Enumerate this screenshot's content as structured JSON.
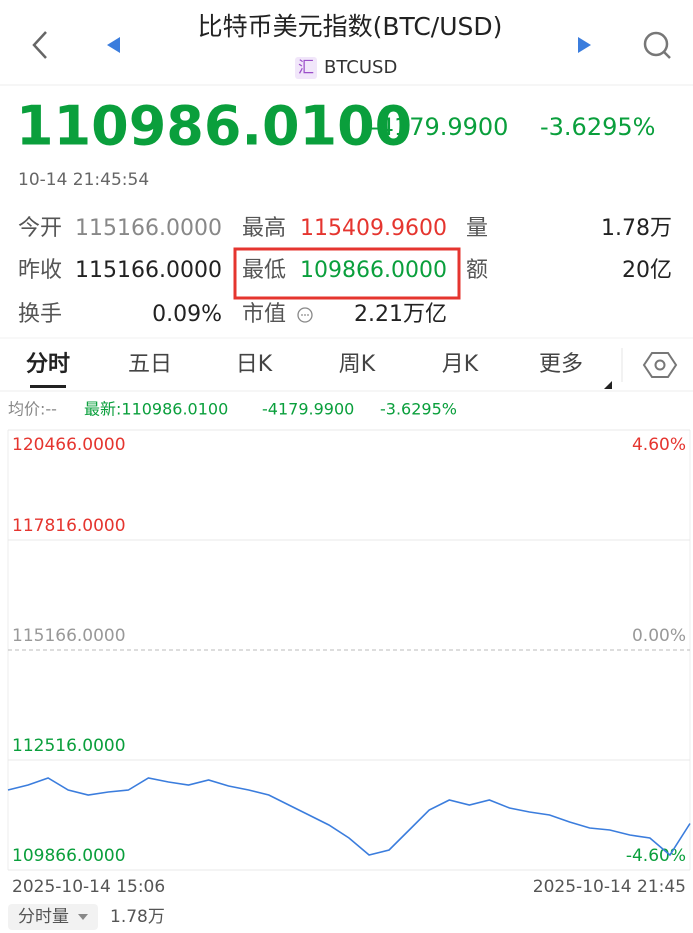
{
  "header": {
    "title": "比特币美元指数(BTC/USD)",
    "badge": "汇",
    "symbol": "BTCUSD"
  },
  "quote": {
    "price": "110986.0100",
    "change": "-4179.9900",
    "change_pct": "-3.6295%",
    "time": "10-14 21:45:54"
  },
  "stats": [
    [
      {
        "label": "今开",
        "value": "115166.0000"
      },
      {
        "label": "最高",
        "value": "115409.9600"
      },
      {
        "label": "量",
        "value": "1.78万"
      }
    ],
    [
      {
        "label": "昨收",
        "value": "115166.0000"
      },
      {
        "label": "最低",
        "value": "109866.0000"
      },
      {
        "label": "额",
        "value": "20亿"
      }
    ],
    [
      {
        "label": "换手",
        "value": "0.09%"
      },
      {
        "label": "市值",
        "value": "2.21万亿"
      }
    ]
  ],
  "tabs": [
    "分时",
    "五日",
    "日K",
    "周K",
    "月K",
    "更多"
  ],
  "legend": {
    "avg": "均价:--",
    "latest": "最新:110986.0100",
    "change": "-4179.9900",
    "change_pct": "-3.6295%"
  },
  "chart_data": {
    "type": "line",
    "color": "#3b7ddd",
    "values": [
      111793,
      111914,
      112082,
      111793,
      111673,
      111745,
      111793,
      112082,
      111986,
      111914,
      112034,
      111890,
      111793,
      111673,
      111432,
      111191,
      110950,
      110637,
      110227,
      110348,
      110830,
      111311,
      111552,
      111432,
      111552,
      111360,
      111263,
      111191,
      111022,
      110878,
      110830,
      110709,
      110637,
      110227,
      110986
    ],
    "ylim": [
      109866,
      120466
    ],
    "yticks": [
      {
        "value": 120466,
        "label": "120466.0000"
      },
      {
        "value": 117816,
        "label": "117816.0000"
      },
      {
        "value": 115166,
        "label": "115166.0000"
      },
      {
        "value": 112516,
        "label": "112516.0000"
      },
      {
        "value": 109866,
        "label": "109866.0000"
      }
    ],
    "y2lim": [
      -4.6,
      4.6
    ],
    "y2ticks": [
      {
        "value": 4.6,
        "label": "4.60%"
      },
      {
        "value": 0,
        "label": "0.00%"
      },
      {
        "value": -4.6,
        "label": "-4.60%"
      }
    ],
    "x_labels": [
      "2025-10-14 15:06",
      "2025-10-14 21:45"
    ],
    "grid": true
  },
  "footer": {
    "selector": "分时量",
    "volume": "1.78万"
  }
}
